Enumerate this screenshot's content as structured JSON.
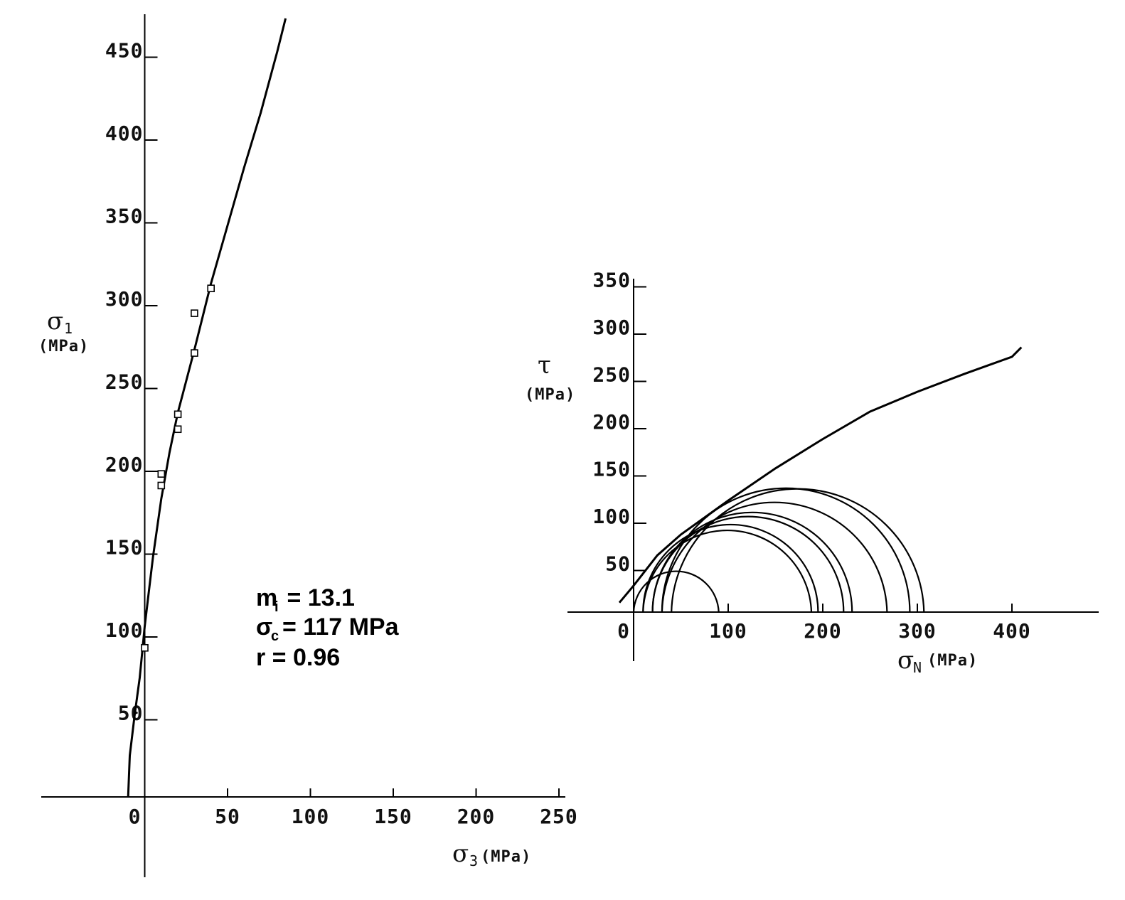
{
  "chart_data": [
    {
      "type": "scatter",
      "xlabel": {
        "symbol": "σ",
        "subscript": "3",
        "unit": "(MPa)"
      },
      "ylabel": {
        "symbol": "σ",
        "subscript": "1",
        "unit": "(MPa)"
      },
      "xlim": [
        -10,
        250
      ],
      "ylim": [
        0,
        470
      ],
      "x_ticks": [
        "0",
        "50",
        "100",
        "150",
        "200",
        "250"
      ],
      "y_ticks": [
        "50",
        "100",
        "150",
        "200",
        "250",
        "300",
        "350",
        "400",
        "450"
      ],
      "series": [
        {
          "kind": "points",
          "marker": "square",
          "x": [
            0,
            10,
            10,
            20,
            20,
            30,
            30,
            40
          ],
          "y": [
            90,
            188,
            195,
            222,
            231,
            268,
            292,
            307
          ]
        },
        {
          "kind": "fitted-curve",
          "x": [
            -10,
            -9,
            -6,
            -3,
            0,
            2,
            5,
            10,
            15,
            20,
            30,
            40,
            50,
            60,
            70,
            80,
            85
          ],
          "y": [
            0,
            25,
            50,
            72,
            103,
            120,
            145,
            180,
            208,
            232,
            270,
            310,
            345,
            380,
            413,
            450,
            470
          ]
        }
      ],
      "annotations": {
        "mi": {
          "label": "m",
          "sub": "i",
          "text": " = 13.1"
        },
        "sigc": {
          "label": "σ",
          "sub": "c",
          "text": "= 117 MPa"
        },
        "r": {
          "text": "r = 0.96"
        }
      }
    },
    {
      "type": "line",
      "xlabel": {
        "symbol": "σ",
        "subscript": "N",
        "unit": "(MPa)"
      },
      "ylabel": {
        "symbol": "τ",
        "unit": "(MPa)"
      },
      "xlim": [
        -15,
        470
      ],
      "ylim": [
        -53,
        360
      ],
      "x_ticks": [
        "0",
        "100",
        "200",
        "300",
        "400"
      ],
      "y_ticks": [
        "50",
        "100",
        "150",
        "200",
        "250",
        "300",
        "350"
      ],
      "mohr_circles": [
        {
          "sigma3": 0,
          "sigma1": 90
        },
        {
          "sigma3": 10,
          "sigma1": 188
        },
        {
          "sigma3": 10,
          "sigma1": 195
        },
        {
          "sigma3": 20,
          "sigma1": 222
        },
        {
          "sigma3": 20,
          "sigma1": 231
        },
        {
          "sigma3": 30,
          "sigma1": 268
        },
        {
          "sigma3": 30,
          "sigma1": 292
        },
        {
          "sigma3": 40,
          "sigma1": 307
        }
      ],
      "envelope": {
        "x": [
          -15,
          0,
          25,
          50,
          75,
          100,
          150,
          200,
          250,
          300,
          350,
          400,
          410
        ],
        "y": [
          10,
          28,
          60,
          82,
          100,
          118,
          152,
          183,
          212,
          233,
          252,
          270,
          280
        ]
      }
    }
  ]
}
